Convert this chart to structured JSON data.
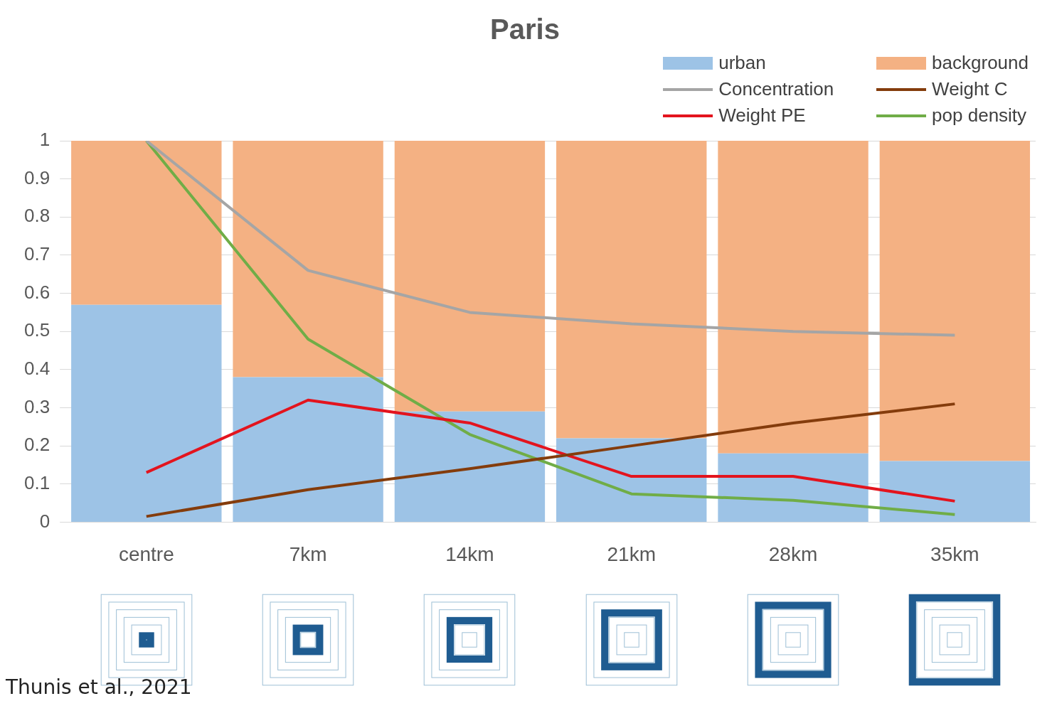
{
  "chart_data": {
    "type": "bar",
    "title": "Paris",
    "stacked": true,
    "grid": "y",
    "legend": "top right",
    "categories": [
      "centre",
      "7km",
      "14km",
      "21km",
      "28km",
      "35km"
    ],
    "ylim": [
      0,
      1
    ],
    "yticks": [
      0,
      0.1,
      0.2,
      0.3,
      0.4,
      0.5,
      0.6,
      0.7,
      0.8,
      0.9,
      1
    ],
    "series": [
      {
        "name": "urban",
        "color": "#9dc3e6",
        "values": [
          0.57,
          0.38,
          0.29,
          0.22,
          0.18,
          0.16
        ]
      },
      {
        "name": "background",
        "color": "#f4b183",
        "values": [
          0.43,
          0.62,
          0.71,
          0.78,
          0.82,
          0.84
        ]
      },
      {
        "name": "Concentration",
        "type": "line",
        "color": "#a5a5a5",
        "values": [
          1,
          0.66,
          0.55,
          0.52,
          0.5,
          0.49
        ]
      },
      {
        "name": "Weight C",
        "type": "line",
        "color": "#843c0c",
        "values": [
          0.015,
          0.085,
          0.14,
          0.2,
          0.26,
          0.31
        ]
      },
      {
        "name": "Weight PE",
        "type": "line",
        "color": "#e3141e",
        "values": [
          0.13,
          0.32,
          0.26,
          0.12,
          0.12,
          0.055
        ]
      },
      {
        "name": "pop density",
        "type": "line",
        "color": "#70ad47",
        "values": [
          1,
          0.48,
          0.23,
          0.074,
          0.057,
          0.02
        ]
      }
    ],
    "annotations": [
      "Thunis et al., 2021"
    ]
  }
}
